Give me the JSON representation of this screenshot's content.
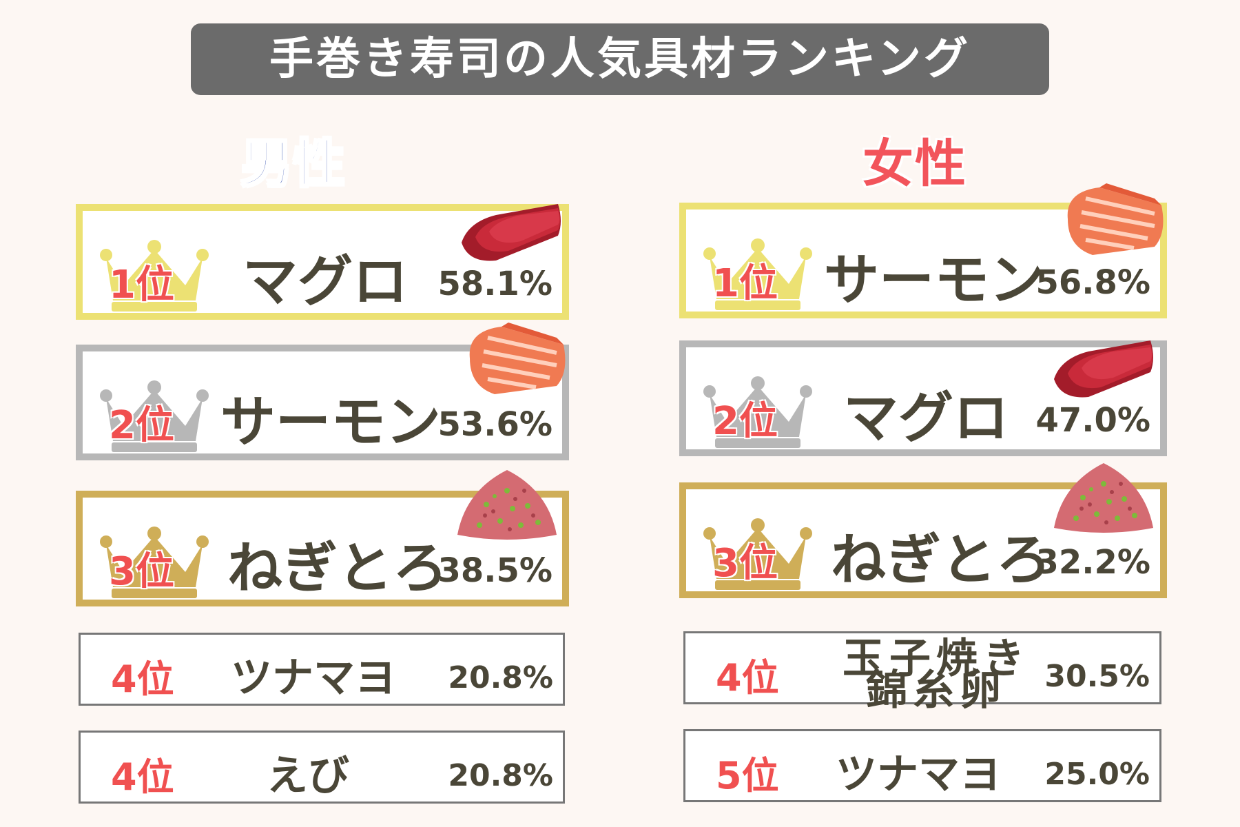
{
  "title": "手巻き寿司の人気具材ランキング",
  "male": {
    "label": "男性",
    "entries": [
      {
        "rank": "1位",
        "name": "マグロ",
        "percent": "58.1%",
        "tier": "gold",
        "food_icon": "tuna-slices-icon"
      },
      {
        "rank": "2位",
        "name": "サーモン",
        "percent": "53.6%",
        "tier": "silver",
        "food_icon": "salmon-slices-icon"
      },
      {
        "rank": "3位",
        "name": "ねぎとろ",
        "percent": "38.5%",
        "tier": "bronze",
        "food_icon": "negitoro-mound-icon"
      },
      {
        "rank": "4位",
        "name": "ツナマヨ",
        "percent": "20.8%"
      },
      {
        "rank": "4位",
        "name": "えび",
        "percent": "20.8%"
      }
    ]
  },
  "female": {
    "label": "女性",
    "entries": [
      {
        "rank": "1位",
        "name": "サーモン",
        "percent": "56.8%",
        "tier": "gold",
        "food_icon": "salmon-slices-icon"
      },
      {
        "rank": "2位",
        "name": "マグロ",
        "percent": "47.0%",
        "tier": "silver",
        "food_icon": "tuna-slices-icon"
      },
      {
        "rank": "3位",
        "name": "ねぎとろ",
        "percent": "32.2%",
        "tier": "bronze",
        "food_icon": "negitoro-mound-icon"
      },
      {
        "rank": "4位",
        "name_line1": "玉子焼き",
        "name_line2": "錦糸卵",
        "percent": "30.5%"
      },
      {
        "rank": "5位",
        "name": "ツナマヨ",
        "percent": "25.0%"
      }
    ]
  },
  "colors": {
    "gold": "#ece173",
    "silver": "#b7b7b7",
    "bronze": "#cfae58",
    "rank_red": "#f05050",
    "male_blue": "#1f3fa8",
    "female_pink": "#f2545b",
    "title_bg": "#6b6b6b"
  }
}
